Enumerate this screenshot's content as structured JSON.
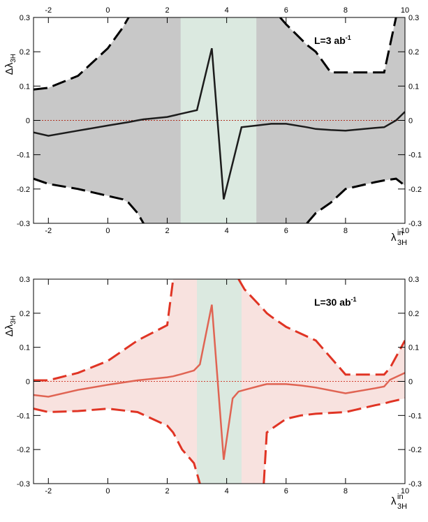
{
  "chart_data": [
    {
      "type": "line",
      "xlim": [
        -2.5,
        10
      ],
      "ylim": [
        -0.3,
        0.3
      ],
      "xticks": [
        -2,
        0,
        2,
        4,
        6,
        8,
        10
      ],
      "yticks": [
        -0.3,
        -0.2,
        -0.1,
        0,
        0.1,
        0.2,
        0.3
      ],
      "x_top_labels": true,
      "y_label": {
        "base": "Δλ",
        "sub": "3H"
      },
      "x_label": {
        "base": "λ",
        "sup": "in",
        "sub": "3H"
      },
      "annotation": {
        "text": "L=3 ab",
        "sup": "-1"
      },
      "band": [
        2.45,
        5
      ],
      "band_color": "#dbe9e0",
      "fill_color": "#c8c8c8",
      "hline": 0,
      "hline_color": "#b03020",
      "x": [
        -2.5,
        -2,
        -1,
        0,
        0.5,
        0.7,
        1,
        1.2,
        2,
        2.5,
        3,
        3.5,
        3.9,
        4.5,
        5,
        5.5,
        5.8,
        6,
        6.7,
        7,
        7.5,
        8,
        9,
        9.3,
        9.7,
        10
      ],
      "series": [
        {
          "color": "#1c1c1c",
          "dash": false,
          "values": [
            -0.035,
            -0.045,
            -0.03,
            -0.015,
            -0.008,
            -0.005,
            0.0,
            0.003,
            0.01,
            0.02,
            0.03,
            0.21,
            -0.23,
            -0.02,
            -0.015,
            -0.01,
            -0.01,
            -0.01,
            -0.02,
            -0.025,
            -0.028,
            -0.03,
            -0.022,
            -0.02,
            0.0,
            0.025
          ]
        },
        {
          "color": "#000000",
          "dash": true,
          "values": [
            0.09,
            0.095,
            0.13,
            0.21,
            0.27,
            0.3,
            null,
            null,
            null,
            null,
            null,
            null,
            null,
            null,
            null,
            null,
            0.3,
            0.28,
            0.22,
            0.2,
            0.14,
            0.14,
            0.14,
            0.14,
            0.3,
            null
          ]
        },
        {
          "color": "#000000",
          "dash": true,
          "values": [
            -0.17,
            -0.185,
            -0.2,
            -0.22,
            -0.23,
            -0.24,
            -0.27,
            -0.3,
            null,
            null,
            null,
            null,
            null,
            null,
            null,
            null,
            null,
            null,
            -0.3,
            -0.27,
            -0.24,
            -0.2,
            -0.18,
            -0.175,
            -0.17,
            -0.19
          ]
        }
      ]
    },
    {
      "type": "line",
      "xlim": [
        -2.5,
        10
      ],
      "ylim": [
        -0.3,
        0.3
      ],
      "xticks": [
        -2,
        0,
        2,
        4,
        6,
        8,
        10
      ],
      "yticks": [
        -0.3,
        -0.2,
        -0.1,
        0,
        0.1,
        0.2,
        0.3
      ],
      "x_top_labels": false,
      "y_label": {
        "base": "Δλ",
        "sub": "3H"
      },
      "x_label": {
        "base": "λ",
        "sup": "in",
        "sub": "3H"
      },
      "annotation": {
        "text": "L=30 ab",
        "sup": "-1"
      },
      "band": [
        3,
        4.5
      ],
      "band_color": "#dbe9e0",
      "fill_color": "#f8e2df",
      "hline": 0,
      "hline_color": "#d04030",
      "x": [
        -2.5,
        -2,
        -1,
        0,
        1,
        2,
        2.2,
        2.5,
        2.9,
        3.1,
        3.5,
        3.9,
        4.2,
        4.4,
        4.6,
        5.25,
        5.35,
        5.5,
        6,
        6.5,
        7,
        8,
        9,
        9.3,
        9.5,
        10
      ],
      "series": [
        {
          "color": "#e06453",
          "dash": false,
          "values": [
            -0.04,
            -0.045,
            -0.025,
            -0.01,
            0.003,
            0.012,
            0.015,
            0.022,
            0.032,
            0.05,
            0.225,
            -0.23,
            -0.05,
            -0.03,
            -0.025,
            -0.01,
            -0.008,
            -0.008,
            -0.008,
            -0.012,
            -0.018,
            -0.035,
            -0.02,
            -0.015,
            0.005,
            0.025
          ]
        },
        {
          "color": "#e03424",
          "dash": true,
          "values": [
            0.003,
            0.003,
            0.025,
            0.06,
            0.12,
            0.165,
            0.3,
            null,
            null,
            null,
            null,
            null,
            null,
            0.3,
            0.27,
            0.21,
            0.2,
            0.19,
            0.16,
            0.14,
            0.12,
            0.02,
            0.02,
            0.02,
            0.04,
            0.12
          ]
        },
        {
          "color": "#e03424",
          "dash": true,
          "values": [
            -0.08,
            -0.09,
            -0.087,
            -0.08,
            -0.09,
            -0.13,
            -0.15,
            -0.2,
            -0.24,
            -0.3,
            null,
            null,
            null,
            null,
            null,
            -0.3,
            -0.15,
            -0.14,
            -0.11,
            -0.1,
            -0.095,
            -0.09,
            -0.07,
            -0.065,
            -0.06,
            -0.05
          ]
        }
      ]
    }
  ]
}
